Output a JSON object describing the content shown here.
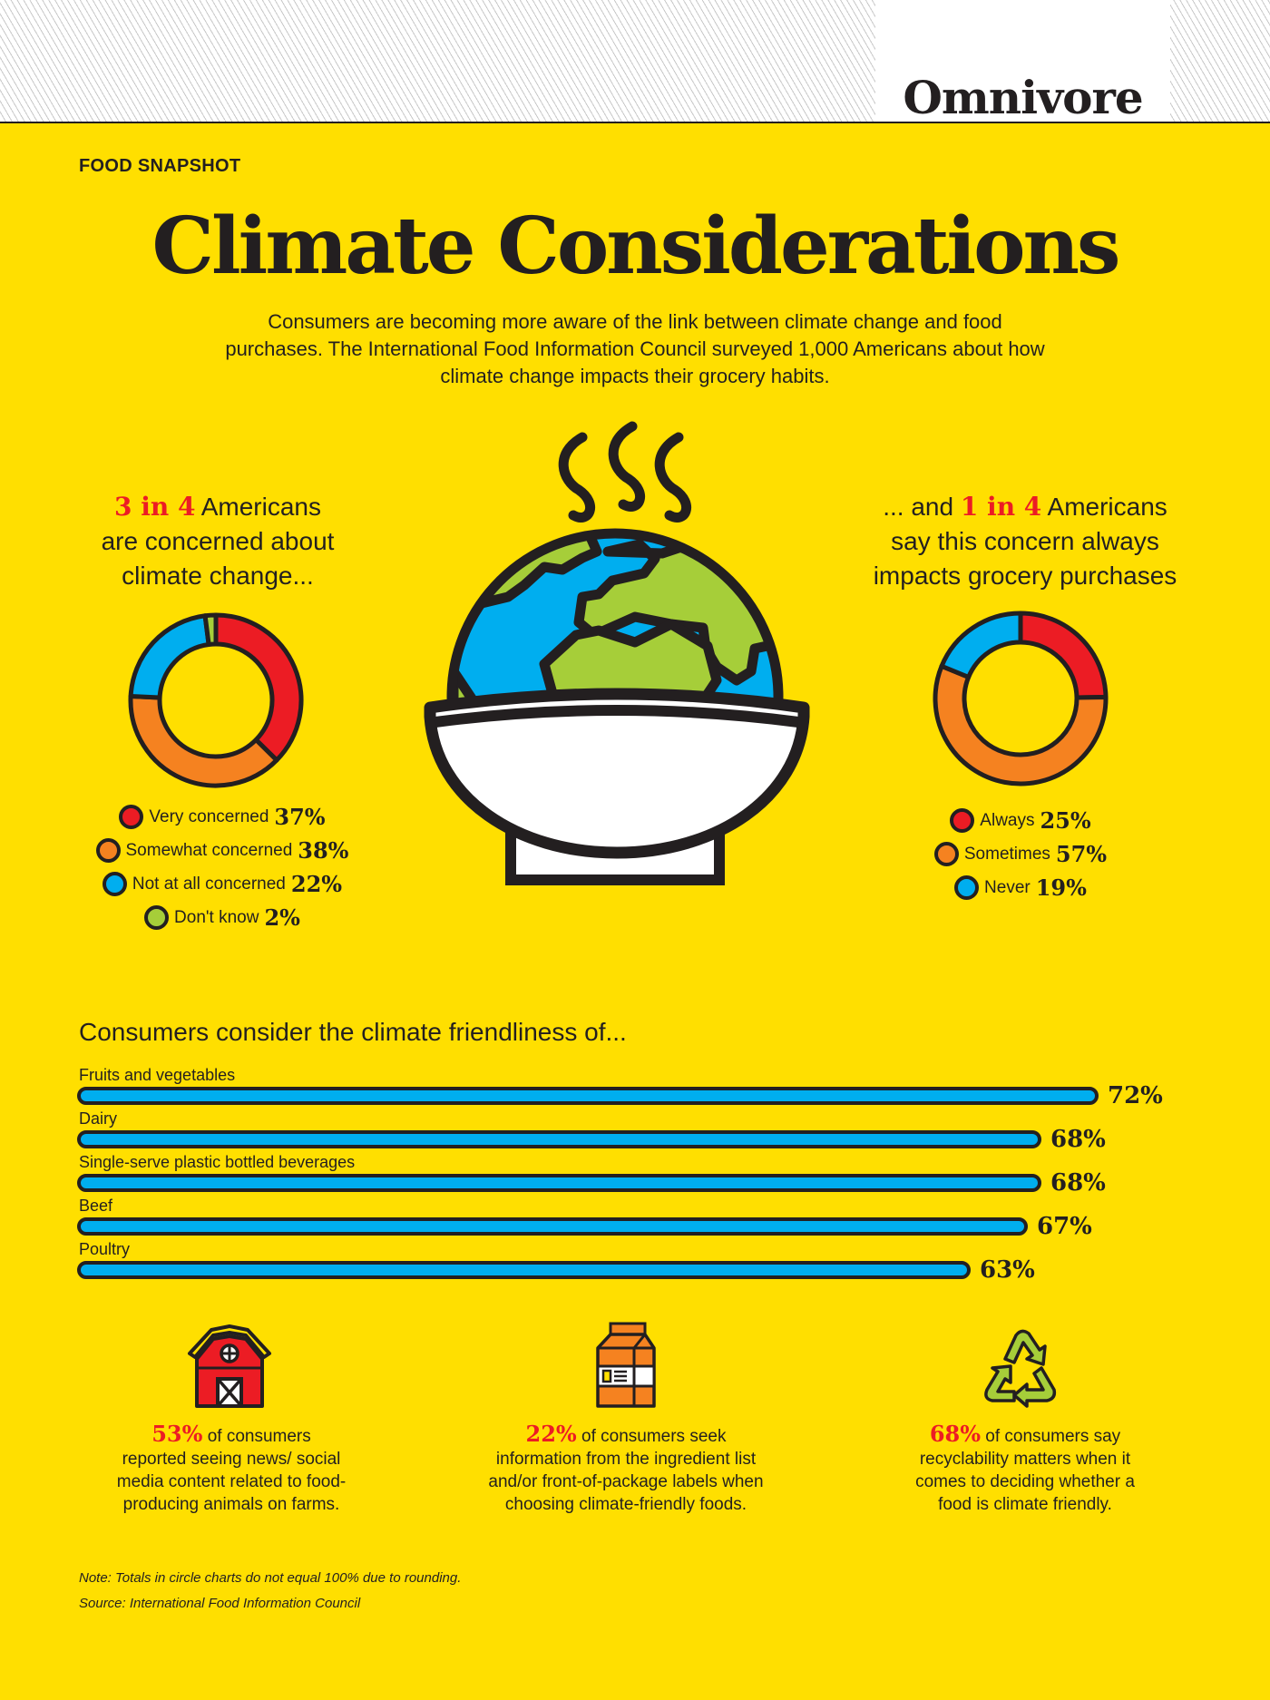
{
  "header": {
    "brand": "Omnivore",
    "kicker": "FOOD SNAPSHOT",
    "title": "Climate Considerations",
    "intro": "Consumers are becoming more aware of the link between climate change and food purchases. The International Food Information Council surveyed 1,000 Americans about how climate change impacts their grocery habits."
  },
  "left_panel": {
    "highlight": "3 in 4",
    "line1_rest": " Americans",
    "line2": "are concerned about",
    "line3": "climate change..."
  },
  "right_panel": {
    "line1_pre": "... and ",
    "highlight": "1 in 4",
    "line1_rest": " Americans",
    "line2": "say this concern always",
    "line3": "impacts grocery purchases"
  },
  "colors": {
    "background": "#FFDF00",
    "red": "#EC1C24",
    "orange": "#F58220",
    "blue": "#00AEEF",
    "green": "#A6CE39",
    "outline": "#231F20"
  },
  "illustration": {
    "name": "steaming globe in a bowl"
  },
  "bars_section": {
    "title": "Consumers consider the climate friendliness of..."
  },
  "stats": [
    {
      "icon": "barn-icon",
      "value": "53%",
      "text_1": " of consumers",
      "text_rest": "reported seeing news/ social media content related to food-producing animals on farms."
    },
    {
      "icon": "milk-carton-icon",
      "value": "22%",
      "text_1": " of consumers seek",
      "text_rest": "information from the ingredient list and/or front-of-package labels when choosing climate-friendly foods."
    },
    {
      "icon": "recycle-icon",
      "value": "68%",
      "text_1": " of consumers say",
      "text_rest": "recyclability matters when it comes to deciding whether a food is climate friendly."
    }
  ],
  "footer": {
    "note": "Note: Totals in circle charts do not equal 100% due to rounding.",
    "source": "Source: International Food Information Council"
  },
  "chart_data": [
    {
      "type": "pie",
      "title": "3 in 4 Americans are concerned about climate change...",
      "donut": true,
      "categories": [
        "Very concerned",
        "Somewhat concerned",
        "Not at all concerned",
        "Don't know"
      ],
      "values": [
        37,
        38,
        22,
        2
      ],
      "labels": [
        "37%",
        "38%",
        "22%",
        "2%"
      ],
      "colors": [
        "#EC1C24",
        "#F58220",
        "#00AEEF",
        "#A6CE39"
      ],
      "legend_position": "bottom"
    },
    {
      "type": "pie",
      "title": "... and 1 in 4 Americans say this concern always impacts grocery purchases",
      "donut": true,
      "categories": [
        "Always",
        "Sometimes",
        "Never"
      ],
      "values": [
        25,
        57,
        19
      ],
      "labels": [
        "25%",
        "57%",
        "19%"
      ],
      "colors": [
        "#EC1C24",
        "#F58220",
        "#00AEEF"
      ],
      "legend_position": "bottom"
    },
    {
      "type": "bar",
      "orientation": "horizontal",
      "title": "Consumers consider the climate friendliness of...",
      "categories": [
        "Fruits and vegetables",
        "Dairy",
        "Single-serve plastic bottled beverages",
        "Beef",
        "Poultry"
      ],
      "values": [
        72,
        68,
        68,
        67,
        63
      ],
      "labels": [
        "72%",
        "68%",
        "68%",
        "67%",
        "63%"
      ],
      "xlabel": "",
      "ylabel": "",
      "grid": false,
      "color": "#00AEEF"
    }
  ]
}
